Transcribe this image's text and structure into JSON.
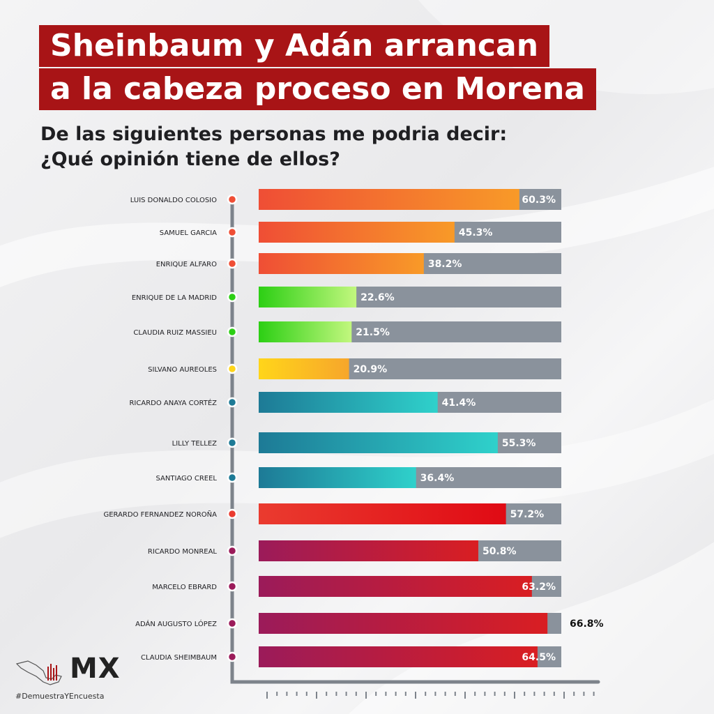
{
  "header": {
    "title_lines": [
      "Sheinbaum y Adán arrancan",
      "a la cabeza proceso en Morena"
    ],
    "subtitle": "De las siguientes personas me podria decir:\n¿Qué opinión tiene de ellos?"
  },
  "brand": {
    "logo_text": "MX",
    "hashtag": "#DemuestraYEncuesta"
  },
  "colors": {
    "title_bg": "#a81416",
    "track": "#8a929c",
    "orange": [
      "#ef4e35",
      "#f89a28"
    ],
    "green": [
      "#2ccf14",
      "#c2f77e"
    ],
    "yellow": [
      "#ffd51a",
      "#f7a62b"
    ],
    "teal": [
      "#1d7a96",
      "#2fd1cb"
    ],
    "red": [
      "#ea3b2f",
      "#e00a14"
    ],
    "crimson": [
      "#9b1b5a",
      "#d91e22"
    ]
  },
  "chart_data": {
    "type": "bar",
    "orientation": "horizontal",
    "xlim": [
      0,
      70
    ],
    "categories": [
      "LUIS DONALDO COLOSIO",
      "SAMUEL GARCIA",
      "ENRIQUE ALFARO",
      "ENRIQUE DE LA MADRID",
      "CLAUDIA RUIZ MASSIEU",
      "SILVANO AUREOLES",
      "RICARDO ANAYA CORTÉZ",
      "LILLY TELLEZ",
      "SANTIAGO CREEL",
      "GERARDO FERNANDEZ NOROÑA",
      "RICARDO MONREAL",
      "MARCELO EBRARD",
      "ADÁN AUGUSTO LÓPEZ",
      "CLAUDIA SHEIMBAUM"
    ],
    "values": [
      60.3,
      45.3,
      38.2,
      22.6,
      21.5,
      20.9,
      41.4,
      55.3,
      36.4,
      57.2,
      50.8,
      63.2,
      66.8,
      64.5
    ],
    "value_labels": [
      "60.3%",
      "45.3%",
      "38.2%",
      "22.6%",
      "21.5%",
      "20.9%",
      "41.4%",
      "55.3%",
      "36.4%",
      "57.2%",
      "50.8%",
      "63.2%",
      "66.8%",
      "64.5%"
    ],
    "groups": [
      "orange",
      "orange",
      "orange",
      "green",
      "green",
      "yellow",
      "teal",
      "teal",
      "teal",
      "red",
      "crimson",
      "crimson",
      "crimson",
      "crimson"
    ]
  }
}
